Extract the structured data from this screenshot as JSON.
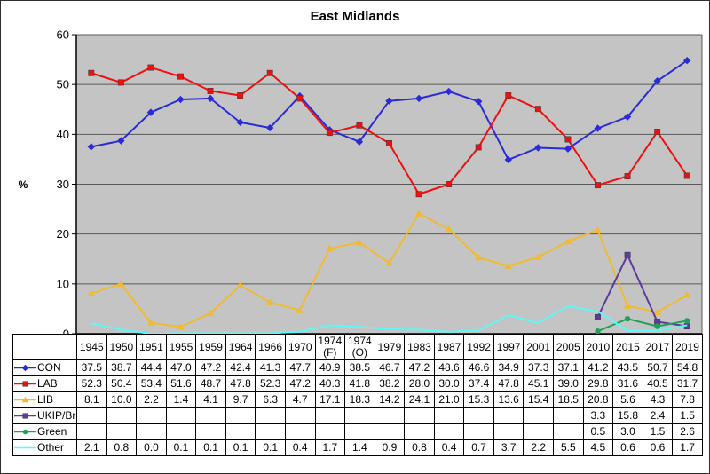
{
  "chart_data": {
    "type": "line",
    "title": "East Midlands",
    "ylabel": "%",
    "ylim": [
      0,
      60
    ],
    "ytick_interval": 10,
    "grid": true,
    "plot_bg": "#C4C4C4",
    "gridline_color": "#595959",
    "legend_position": "table-left",
    "categories": [
      "1945",
      "1950",
      "1951",
      "1955",
      "1959",
      "1964",
      "1966",
      "1970",
      "1974 (F)",
      "1974 (O)",
      "1979",
      "1983",
      "1987",
      "1992",
      "1997",
      "2001",
      "2005",
      "2010",
      "2015",
      "2017",
      "2019"
    ],
    "series": [
      {
        "name": "CON",
        "color": "#2B2BD6",
        "marker": "diamond",
        "values": [
          37.5,
          38.7,
          44.4,
          47.0,
          47.2,
          42.4,
          41.3,
          47.7,
          40.9,
          38.5,
          46.7,
          47.2,
          48.6,
          46.6,
          34.9,
          37.3,
          37.1,
          41.2,
          43.5,
          50.7,
          54.8
        ]
      },
      {
        "name": "LAB",
        "color": "#EE1010",
        "marker": "square",
        "values": [
          52.3,
          50.4,
          53.4,
          51.6,
          48.7,
          47.8,
          52.3,
          47.2,
          40.3,
          41.8,
          38.2,
          28.0,
          30.0,
          37.4,
          47.8,
          45.1,
          39.0,
          29.8,
          31.6,
          40.5,
          31.7
        ]
      },
      {
        "name": "LIB",
        "color": "#EFBB33",
        "marker": "triangle",
        "values": [
          8.1,
          10.0,
          2.2,
          1.4,
          4.1,
          9.7,
          6.3,
          4.7,
          17.1,
          18.3,
          14.2,
          24.1,
          21.0,
          15.3,
          13.6,
          15.4,
          18.5,
          20.8,
          5.6,
          4.3,
          7.8
        ]
      },
      {
        "name": "UKIP/Br",
        "color": "#5C3A9E",
        "marker": "square",
        "values": [
          null,
          null,
          null,
          null,
          null,
          null,
          null,
          null,
          null,
          null,
          null,
          null,
          null,
          null,
          null,
          null,
          null,
          3.3,
          15.8,
          2.4,
          1.5
        ]
      },
      {
        "name": "Green",
        "color": "#1EA25B",
        "marker": "circle",
        "values": [
          null,
          null,
          null,
          null,
          null,
          null,
          null,
          null,
          null,
          null,
          null,
          null,
          null,
          null,
          null,
          null,
          null,
          0.5,
          3.0,
          1.5,
          2.6
        ]
      },
      {
        "name": "Other",
        "color": "#5FF7F5",
        "marker": "none",
        "values": [
          2.1,
          0.8,
          0.0,
          0.1,
          0.1,
          0.1,
          0.1,
          0.4,
          1.7,
          1.4,
          0.9,
          0.8,
          0.4,
          0.7,
          3.7,
          2.2,
          5.5,
          4.5,
          0.6,
          0.6,
          1.7
        ]
      }
    ]
  }
}
